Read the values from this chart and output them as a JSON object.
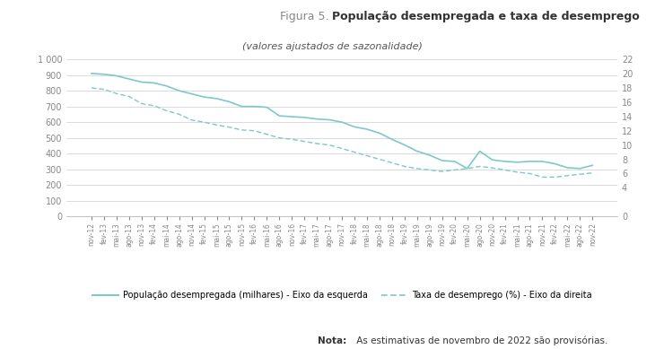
{
  "title_prefix": "Figura 5. ",
  "title_bold": "População desempregada e taxa de desemprego",
  "subtitle": "(valores ajustados de sazonalidade)",
  "note_bold": "Nota:",
  "note_regular": " As estimativas de novembro de 2022 são provisórias.",
  "ylim_left": [
    0,
    1000
  ],
  "ylim_right": [
    0,
    22
  ],
  "yticks_left": [
    0,
    100,
    200,
    300,
    400,
    500,
    600,
    700,
    800,
    900,
    1000
  ],
  "yticks_right": [
    0,
    4,
    6,
    8,
    10,
    12,
    14,
    16,
    18,
    20,
    22
  ],
  "line_color": "#7ec8c8",
  "background_color": "#ffffff",
  "grid_color": "#cccccc",
  "tick_color": "#888888",
  "legend_label_solid": "População desempregada (milhares) - Eixo da esquerda",
  "legend_label_dashed": "Taxa de desemprego (%) - Eixo da direita",
  "x_labels": [
    "nov-12",
    "fev-13",
    "mai-13",
    "ago-13",
    "nov-13",
    "fev-14",
    "mai-14",
    "ago-14",
    "nov-14",
    "fev-15",
    "mai-15",
    "ago-15",
    "nov-15",
    "fev-16",
    "mai-16",
    "ago-16",
    "nov-16",
    "fev-17",
    "mai-17",
    "ago-17",
    "nov-17",
    "fev-18",
    "mai-18",
    "ago-18",
    "nov-18",
    "fev-19",
    "mai-19",
    "ago-19",
    "nov-19",
    "fev-20",
    "mai-20",
    "ago-20",
    "nov-20",
    "fev-21",
    "mai-21",
    "ago-21",
    "nov-21",
    "fev-22",
    "mai-22",
    "ago-22",
    "nov-22"
  ],
  "pop_values": [
    910,
    905,
    895,
    875,
    855,
    850,
    830,
    800,
    780,
    760,
    750,
    730,
    700,
    700,
    695,
    640,
    635,
    630,
    620,
    615,
    600,
    570,
    555,
    530,
    490,
    455,
    415,
    390,
    355,
    350,
    305,
    415,
    360,
    350,
    345,
    350,
    350,
    335,
    310,
    305,
    325
  ],
  "rate_values": [
    18.0,
    17.8,
    17.2,
    16.8,
    15.8,
    15.5,
    14.8,
    14.3,
    13.5,
    13.2,
    12.8,
    12.5,
    12.1,
    12.0,
    11.5,
    11.0,
    10.8,
    10.5,
    10.2,
    10.0,
    9.5,
    9.0,
    8.5,
    8.0,
    7.5,
    7.0,
    6.7,
    6.5,
    6.3,
    6.5,
    6.7,
    7.0,
    6.8,
    6.5,
    6.2,
    6.0,
    5.5,
    5.5,
    5.7,
    5.9,
    6.1
  ]
}
